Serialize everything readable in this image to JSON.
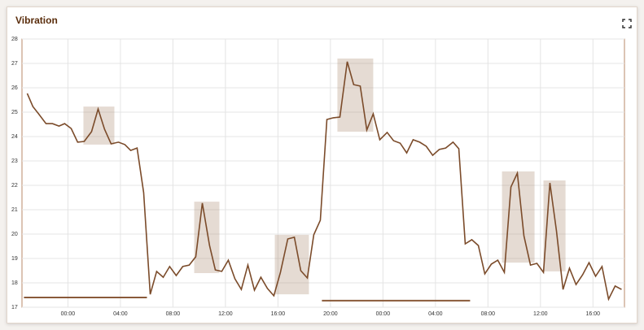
{
  "chart_data": {
    "type": "line",
    "title": "Vibration",
    "x": [
      -3.1,
      -2.67,
      -2.23,
      -1.67,
      -1.18,
      -0.68,
      -0.25,
      0.25,
      0.74,
      1.24,
      1.8,
      2.3,
      2.79,
      3.29,
      3.85,
      4.34,
      4.78,
      5.27,
      5.77,
      6.27,
      6.76,
      7.26,
      7.75,
      8.25,
      8.75,
      9.24,
      9.74,
      10.24,
      10.79,
      11.23,
      11.72,
      12.22,
      12.72,
      13.21,
      13.71,
      14.21,
      14.7,
      15.2,
      15.69,
      16.19,
      16.75,
      17.25,
      17.74,
      18.24,
      18.73,
      19.23,
      19.73,
      20.22,
      20.72,
      21.28,
      21.77,
      22.27,
      22.77,
      23.26,
      23.76,
      24.32,
      24.81,
      25.31,
      25.81,
      26.3,
      26.8,
      27.3,
      27.79,
      28.29,
      28.78,
      29.34,
      29.78,
      30.27,
      30.77,
      31.27,
      31.76,
      32.26,
      32.75,
      33.25,
      33.75,
      34.24,
      34.74,
      35.24,
      35.73,
      36.23,
      36.72,
      37.22,
      37.72,
      38.21,
      38.71,
      39.21,
      39.7,
      40.2,
      40.69,
      41.19,
      41.69,
      42.18
    ],
    "series": [
      {
        "name": "Vibration",
        "color": "#7b4b2a",
        "values": [
          25.77,
          25.23,
          24.93,
          24.53,
          24.53,
          24.43,
          24.53,
          24.33,
          23.77,
          23.8,
          24.2,
          25.13,
          24.3,
          23.7,
          23.77,
          23.67,
          23.43,
          23.53,
          21.7,
          17.53,
          18.47,
          18.23,
          18.67,
          18.3,
          18.67,
          18.73,
          19.07,
          21.27,
          19.53,
          18.53,
          18.47,
          18.93,
          18.17,
          17.73,
          18.73,
          17.7,
          18.23,
          17.77,
          17.47,
          18.43,
          19.8,
          19.87,
          18.5,
          18.2,
          19.97,
          20.57,
          24.7,
          24.77,
          24.8,
          27.07,
          26.13,
          26.07,
          24.27,
          24.93,
          23.87,
          24.17,
          23.83,
          23.73,
          23.33,
          23.87,
          23.77,
          23.6,
          23.23,
          23.47,
          23.53,
          23.77,
          23.5,
          19.6,
          19.77,
          19.53,
          18.37,
          18.77,
          18.93,
          18.43,
          21.93,
          22.5,
          19.93,
          18.73,
          18.8,
          18.43,
          22.1,
          20.13,
          17.73,
          18.6,
          17.93,
          18.33,
          18.83,
          18.27,
          18.67,
          17.33,
          17.87,
          17.73
        ]
      }
    ],
    "highlights": [
      {
        "x": [
          1.18,
          3.54
        ],
        "y": [
          23.67,
          25.23
        ]
      },
      {
        "x": [
          9.62,
          11.54
        ],
        "y": [
          18.4,
          21.33
        ]
      },
      {
        "x": [
          15.76,
          18.36
        ],
        "y": [
          17.53,
          19.97
        ]
      },
      {
        "x": [
          20.53,
          23.26
        ],
        "y": [
          24.2,
          27.2
        ]
      },
      {
        "x": [
          33.07,
          35.55
        ],
        "y": [
          18.83,
          22.57
        ]
      },
      {
        "x": [
          36.23,
          37.91
        ],
        "y": [
          18.47,
          22.2
        ]
      }
    ],
    "baselines": [
      {
        "x": [
          -3.35,
          6.02
        ],
        "y": 17.4
      },
      {
        "x": [
          19.35,
          30.64
        ],
        "y": 17.27
      }
    ],
    "xlim": [
      -3.5,
      42.4
    ],
    "ylim": [
      17,
      28
    ],
    "xticks": [
      {
        "value": 0,
        "label": "00:00"
      },
      {
        "value": 4,
        "label": "04:00"
      },
      {
        "value": 8,
        "label": "08:00"
      },
      {
        "value": 12,
        "label": "12:00"
      },
      {
        "value": 16,
        "label": "16:00"
      },
      {
        "value": 20,
        "label": "20:00"
      },
      {
        "value": 24,
        "label": "00:00"
      },
      {
        "value": 28,
        "label": "04:00"
      },
      {
        "value": 32,
        "label": "08:00"
      },
      {
        "value": 36,
        "label": "12:00"
      },
      {
        "value": 40,
        "label": "16:00"
      }
    ],
    "yticks": [
      17,
      18,
      19,
      20,
      21,
      22,
      23,
      24,
      25,
      26,
      27,
      28
    ],
    "grid": true
  }
}
